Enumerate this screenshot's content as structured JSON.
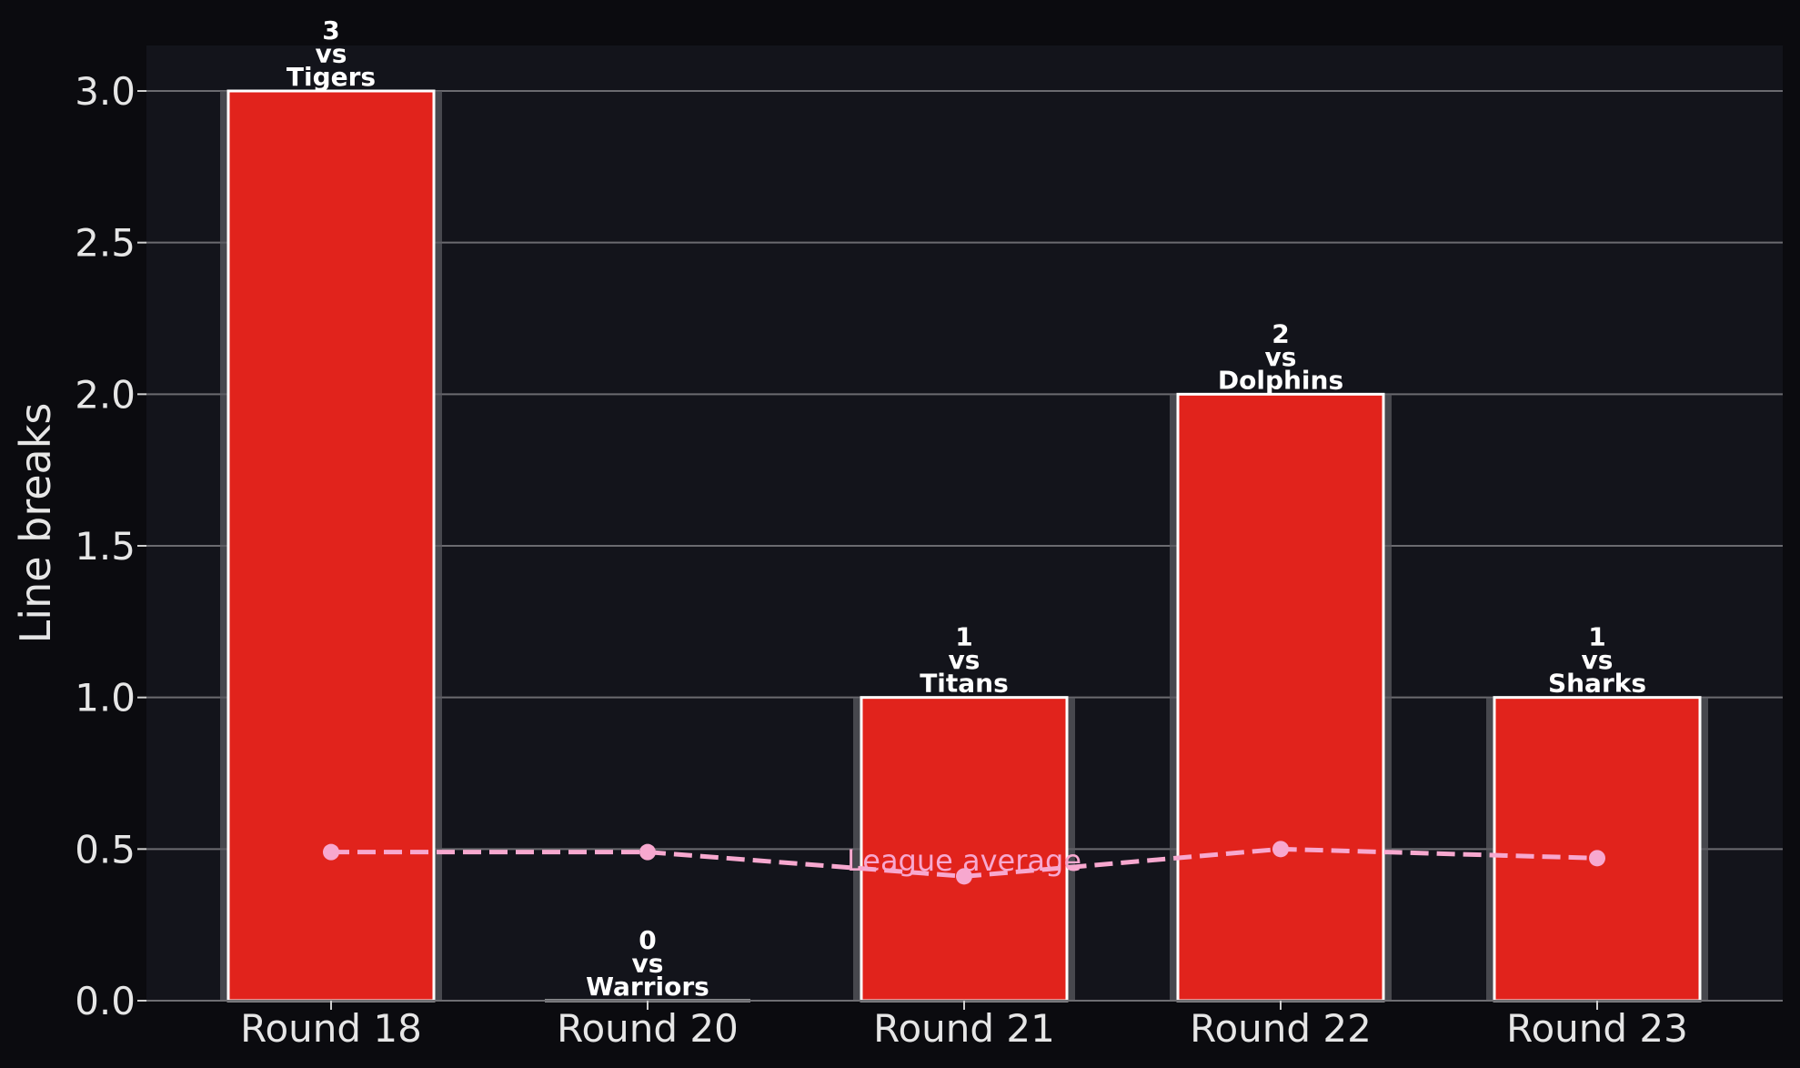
{
  "chart_data": {
    "type": "bar",
    "title": "",
    "xlabel": "",
    "ylabel": "Line breaks",
    "ylim": [
      0,
      3.15
    ],
    "yticks": [
      0.0,
      0.5,
      1.0,
      1.5,
      2.0,
      2.5,
      3.0
    ],
    "ytick_labels": [
      "0.0",
      "0.5",
      "1.0",
      "1.5",
      "2.0",
      "2.5",
      "3.0"
    ],
    "grid": true,
    "categories": [
      "Round 18",
      "Round 20",
      "Round 21",
      "Round 22",
      "Round 23"
    ],
    "series": [
      {
        "values": [
          3,
          0,
          1,
          2,
          1
        ]
      },
      {
        "name": "League average",
        "style": "dashed-line-with-markers",
        "values": [
          0.49,
          0.49,
          0.41,
          0.5,
          0.47
        ]
      }
    ],
    "bar_labels": [
      [
        "3",
        "vs",
        "Tigers"
      ],
      [
        "0",
        "vs",
        "Warriors"
      ],
      [
        "1",
        "vs",
        "Titans"
      ],
      [
        "2",
        "vs",
        "Dolphins"
      ],
      [
        "1",
        "vs",
        "Sharks"
      ]
    ],
    "annotations": [
      "League average"
    ],
    "colors": {
      "figure_background": "#0b0b0f",
      "plot_background": "#13141b",
      "bar_fill": "#e1231c",
      "bar_edge": "#ffffff",
      "bar_glow": "#5a5a60",
      "grid": "#6b6b70",
      "average_line": "#f7a8cf",
      "text": "#e6e6e6"
    }
  }
}
